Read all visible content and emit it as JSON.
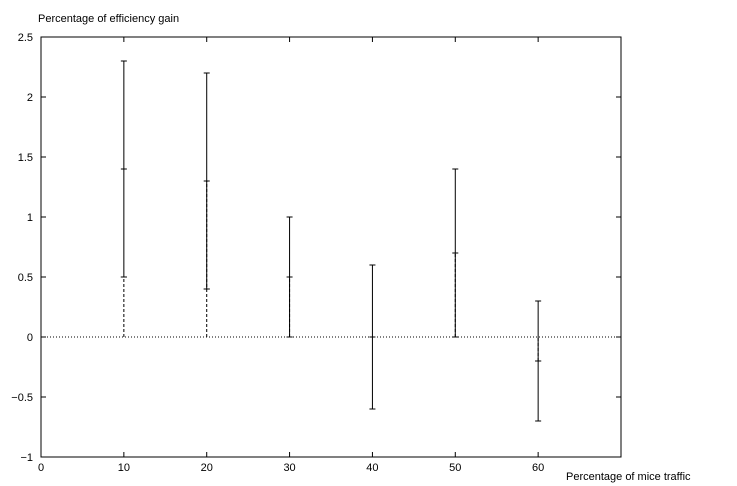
{
  "chart_data": {
    "type": "errorbar",
    "title": "",
    "ylabel": "Percentage of efficiency gain",
    "xlabel": "Percentage of mice traffic",
    "xlim": [
      0,
      70
    ],
    "ylim": [
      -1,
      2.5
    ],
    "xticks": [
      0,
      10,
      20,
      30,
      40,
      50,
      60
    ],
    "yticks": [
      -1,
      -0.5,
      0,
      0.5,
      1,
      1.5,
      2,
      2.5
    ],
    "xtick_labels": [
      "0",
      "10",
      "20",
      "30",
      "40",
      "50",
      "60"
    ],
    "ytick_labels": [
      "−1",
      "−0.5",
      "0",
      "0.5",
      "1",
      "1.5",
      "2",
      "2.5"
    ],
    "grid": false,
    "series": [
      {
        "style": "solid",
        "points": [
          {
            "x": 10,
            "y": 1.4,
            "low": 0.5,
            "high": 2.3
          },
          {
            "x": 20,
            "y": 1.3,
            "low": 0.4,
            "high": 2.2
          },
          {
            "x": 30,
            "y": 0.5,
            "low": 0.0,
            "high": 1.0
          },
          {
            "x": 40,
            "y": 0.0,
            "low": -0.6,
            "high": 0.6
          },
          {
            "x": 50,
            "y": 0.7,
            "low": 0.0,
            "high": 1.4
          },
          {
            "x": 60,
            "y": -0.2,
            "low": -0.7,
            "high": 0.3
          }
        ]
      },
      {
        "style": "dashed",
        "points": [
          {
            "x": 10,
            "y": 0.5,
            "low": 0.0,
            "high": 0.5
          },
          {
            "x": 20,
            "y": 0.4,
            "low": 0.0,
            "high": 1.3
          },
          {
            "x": 30,
            "y": 0.0,
            "low": 0.0,
            "high": 0.5
          },
          {
            "x": 50,
            "y": 0.0,
            "low": 0.0,
            "high": 0.7
          },
          {
            "x": 60,
            "y": -0.2,
            "low": -0.2,
            "high": 0.0
          }
        ]
      }
    ],
    "reference_line": {
      "y": 0,
      "style": "dotted"
    }
  }
}
